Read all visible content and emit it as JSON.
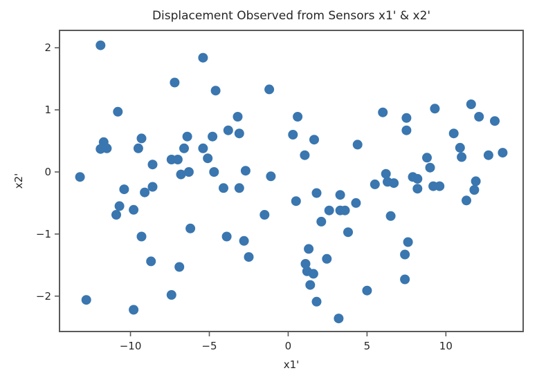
{
  "chart_data": {
    "type": "scatter",
    "title": "Displacement Observed from Sensors x1' & x2'",
    "xlabel": "x1'",
    "ylabel": "x2'",
    "xlim": [
      -14.5,
      14.9
    ],
    "ylim": [
      -2.57,
      2.28
    ],
    "xticks": [
      -10,
      -5,
      0,
      5,
      10
    ],
    "xtick_labels": [
      "−10",
      "−5",
      "0",
      "5",
      "10"
    ],
    "yticks": [
      -2,
      -1,
      0,
      1,
      2
    ],
    "ytick_labels": [
      "−2",
      "−1",
      "0",
      "1",
      "2"
    ],
    "grid": false,
    "legend": null,
    "marker_color": "#3a76af",
    "series": [
      {
        "name": "sensors",
        "points": [
          [
            -11.9,
            2.04
          ],
          [
            -10.8,
            0.97
          ],
          [
            -11.7,
            0.48
          ],
          [
            -11.9,
            0.37
          ],
          [
            -11.5,
            0.38
          ],
          [
            -9.3,
            0.54
          ],
          [
            -9.5,
            0.38
          ],
          [
            -8.6,
            0.12
          ],
          [
            -13.2,
            -0.08
          ],
          [
            -7.2,
            1.44
          ],
          [
            -7.4,
            0.2
          ],
          [
            -7.0,
            0.2
          ],
          [
            -10.4,
            -0.28
          ],
          [
            -8.6,
            -0.24
          ],
          [
            -9.1,
            -0.33
          ],
          [
            -10.7,
            -0.55
          ],
          [
            -10.9,
            -0.69
          ],
          [
            -9.8,
            -0.61
          ],
          [
            -6.2,
            -0.91
          ],
          [
            -9.3,
            -1.04
          ],
          [
            -8.7,
            -1.44
          ],
          [
            -6.9,
            -1.53
          ],
          [
            -7.4,
            -1.98
          ],
          [
            -12.8,
            -2.06
          ],
          [
            -9.8,
            -2.22
          ],
          [
            -6.8,
            -0.04
          ],
          [
            -6.3,
            0.0
          ],
          [
            -5.4,
            1.84
          ],
          [
            -4.6,
            1.31
          ],
          [
            -1.2,
            1.33
          ],
          [
            -3.2,
            0.89
          ],
          [
            -3.8,
            0.67
          ],
          [
            -3.1,
            0.62
          ],
          [
            -6.4,
            0.57
          ],
          [
            -4.8,
            0.57
          ],
          [
            -6.6,
            0.38
          ],
          [
            -5.4,
            0.38
          ],
          [
            -5.1,
            0.22
          ],
          [
            -4.7,
            0.0
          ],
          [
            -2.7,
            0.02
          ],
          [
            -1.1,
            -0.07
          ],
          [
            -4.1,
            -0.26
          ],
          [
            -3.1,
            -0.26
          ],
          [
            -1.5,
            -0.69
          ],
          [
            -3.9,
            -1.04
          ],
          [
            -2.8,
            -1.11
          ],
          [
            -2.5,
            -1.37
          ],
          [
            0.3,
            0.6
          ],
          [
            0.6,
            0.89
          ],
          [
            1.65,
            0.52
          ],
          [
            1.05,
            0.27
          ],
          [
            4.4,
            0.44
          ],
          [
            0.5,
            -0.47
          ],
          [
            1.8,
            -0.34
          ],
          [
            3.3,
            -0.37
          ],
          [
            2.6,
            -0.62
          ],
          [
            3.3,
            -0.62
          ],
          [
            3.6,
            -0.62
          ],
          [
            4.3,
            -0.5
          ],
          [
            5.5,
            -0.2
          ],
          [
            2.1,
            -0.8
          ],
          [
            3.8,
            -0.97
          ],
          [
            6.5,
            -0.71
          ],
          [
            1.3,
            -1.24
          ],
          [
            2.45,
            -1.4
          ],
          [
            1.1,
            -1.48
          ],
          [
            1.2,
            -1.6
          ],
          [
            1.6,
            -1.64
          ],
          [
            1.4,
            -1.82
          ],
          [
            5.0,
            -1.91
          ],
          [
            1.8,
            -2.09
          ],
          [
            3.2,
            -2.36
          ],
          [
            6.0,
            0.96
          ],
          [
            7.5,
            0.87
          ],
          [
            7.5,
            0.67
          ],
          [
            9.3,
            1.02
          ],
          [
            8.8,
            0.23
          ],
          [
            9.0,
            0.07
          ],
          [
            6.2,
            -0.03
          ],
          [
            6.3,
            -0.16
          ],
          [
            6.7,
            -0.18
          ],
          [
            7.9,
            -0.08
          ],
          [
            8.2,
            -0.11
          ],
          [
            8.2,
            -0.27
          ],
          [
            9.2,
            -0.23
          ],
          [
            9.6,
            -0.23
          ],
          [
            7.6,
            -1.13
          ],
          [
            7.4,
            -1.33
          ],
          [
            7.4,
            -1.73
          ],
          [
            11.6,
            1.09
          ],
          [
            12.1,
            0.89
          ],
          [
            13.1,
            0.82
          ],
          [
            10.5,
            0.62
          ],
          [
            10.9,
            0.39
          ],
          [
            11.0,
            0.24
          ],
          [
            12.7,
            0.27
          ],
          [
            13.6,
            0.31
          ],
          [
            11.9,
            -0.15
          ],
          [
            11.8,
            -0.29
          ],
          [
            11.3,
            -0.46
          ]
        ]
      }
    ]
  }
}
